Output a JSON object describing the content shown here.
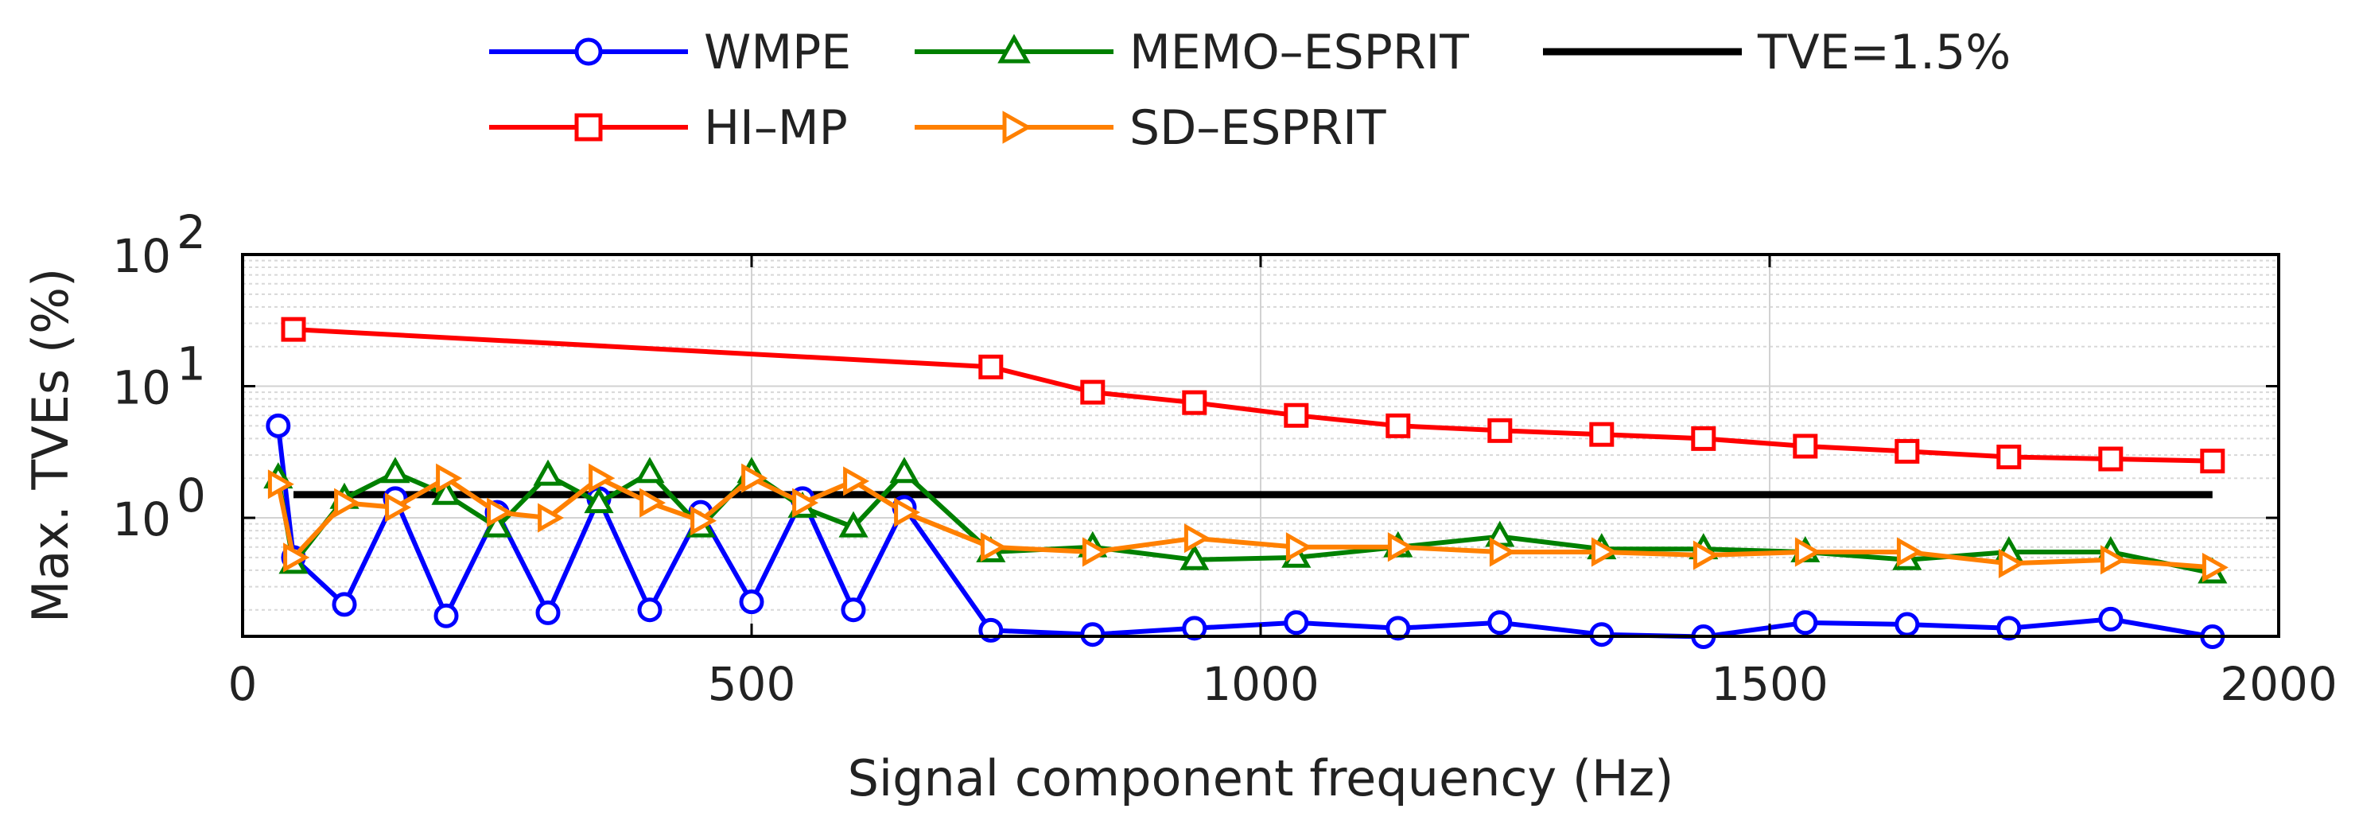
{
  "chart_data": {
    "type": "line",
    "title": "",
    "xlabel": "Signal component frequency (Hz)",
    "ylabel": "Max. TVEs (%)",
    "xlim": [
      0,
      2000
    ],
    "ylim_log10": [
      -0.9,
      2
    ],
    "yscale": "log",
    "grid": true,
    "legend_position": "top",
    "x_ticks": [
      {
        "value": 0,
        "label": "0"
      },
      {
        "value": 500,
        "label": "500"
      },
      {
        "value": 1000,
        "label": "1000"
      },
      {
        "value": 1500,
        "label": "1500"
      },
      {
        "value": 2000,
        "label": "2000"
      }
    ],
    "y_ticks": [
      {
        "exp": 0,
        "base": "10",
        "power": "0"
      },
      {
        "exp": 1,
        "base": "10",
        "power": "1"
      },
      {
        "exp": 2,
        "base": "10",
        "power": "2"
      }
    ],
    "series": [
      {
        "name": "WMPE",
        "color": "#0000ff",
        "marker": "circle",
        "x": [
          35,
          50,
          100,
          150,
          200,
          250,
          300,
          350,
          400,
          450,
          500,
          550,
          600,
          650,
          735,
          835,
          935,
          1035,
          1135,
          1235,
          1335,
          1435,
          1535,
          1635,
          1735,
          1835,
          1935
        ],
        "y": [
          5.0,
          0.5,
          0.22,
          1.4,
          0.18,
          1.1,
          0.19,
          1.4,
          0.2,
          1.1,
          0.23,
          1.4,
          0.2,
          1.2,
          0.14,
          0.13,
          0.145,
          0.16,
          0.145,
          0.16,
          0.13,
          0.125,
          0.16,
          0.155,
          0.145,
          0.17,
          0.125
        ]
      },
      {
        "name": "MEMO–ESPRIT",
        "color": "#008000",
        "marker": "triangle-up",
        "x": [
          35,
          50,
          100,
          150,
          200,
          250,
          300,
          350,
          400,
          450,
          500,
          550,
          600,
          650,
          735,
          835,
          935,
          1035,
          1135,
          1235,
          1335,
          1435,
          1535,
          1635,
          1735,
          1835,
          1935
        ],
        "y": [
          2.0,
          0.45,
          1.4,
          2.2,
          1.5,
          0.85,
          2.1,
          1.3,
          2.2,
          0.85,
          2.2,
          1.2,
          0.85,
          2.2,
          0.55,
          0.6,
          0.48,
          0.5,
          0.6,
          0.72,
          0.58,
          0.58,
          0.55,
          0.48,
          0.55,
          0.55,
          0.38
        ]
      },
      {
        "name": "TVE=1.5%",
        "color": "#000000",
        "marker": "none",
        "x": [
          50,
          1935
        ],
        "y": [
          1.5,
          1.5
        ]
      },
      {
        "name": "HI–MP",
        "color": "#ff0000",
        "marker": "square",
        "x": [
          50,
          735,
          835,
          935,
          1035,
          1135,
          1235,
          1335,
          1435,
          1535,
          1635,
          1735,
          1835,
          1935
        ],
        "y": [
          27,
          14,
          9,
          7.5,
          6,
          5,
          4.6,
          4.3,
          4.0,
          3.5,
          3.2,
          2.9,
          2.8,
          2.7
        ]
      },
      {
        "name": "SD–ESPRIT",
        "color": "#ff8000",
        "marker": "triangle-right",
        "x": [
          35,
          50,
          100,
          150,
          200,
          250,
          300,
          350,
          400,
          450,
          500,
          550,
          600,
          650,
          735,
          835,
          935,
          1035,
          1135,
          1235,
          1335,
          1435,
          1535,
          1635,
          1735,
          1835,
          1935
        ],
        "y": [
          1.8,
          0.5,
          1.3,
          1.2,
          2.0,
          1.1,
          1.0,
          2.0,
          1.3,
          0.95,
          2.0,
          1.3,
          1.9,
          1.1,
          0.6,
          0.55,
          0.7,
          0.6,
          0.6,
          0.55,
          0.55,
          0.52,
          0.55,
          0.55,
          0.45,
          0.48,
          0.42
        ]
      }
    ]
  }
}
